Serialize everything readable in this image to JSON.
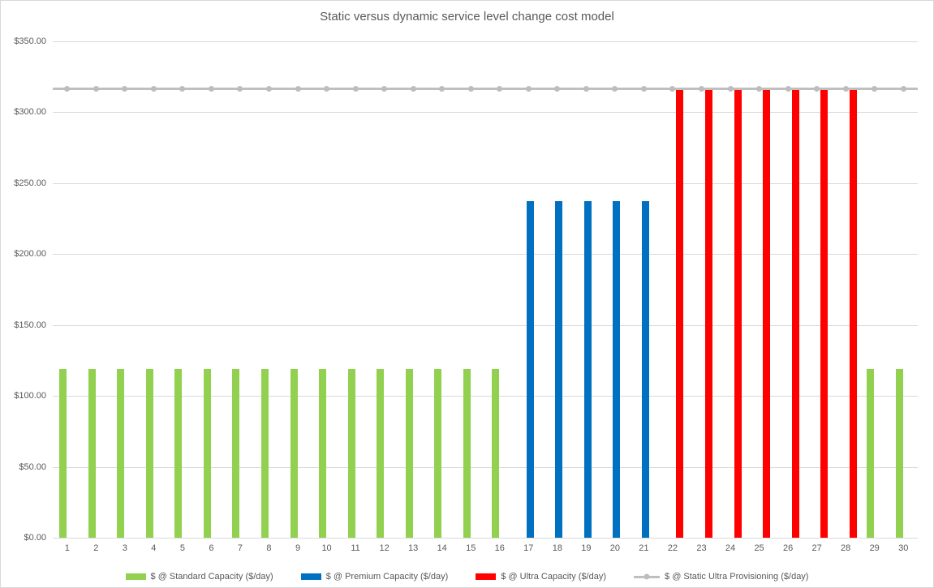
{
  "chart_data": {
    "type": "bar",
    "title": "Static versus dynamic service level change cost model",
    "xlabel": "",
    "ylabel": "",
    "ylim": [
      0,
      350
    ],
    "grid": "horizontal",
    "legend_position": "bottom",
    "y_ticks": [
      {
        "value": 0,
        "label": "$0.00"
      },
      {
        "value": 50,
        "label": "$50.00"
      },
      {
        "value": 100,
        "label": "$100.00"
      },
      {
        "value": 150,
        "label": "$150.00"
      },
      {
        "value": 200,
        "label": "$200.00"
      },
      {
        "value": 250,
        "label": "$250.00"
      },
      {
        "value": 300,
        "label": "$300.00"
      },
      {
        "value": 350,
        "label": "$350.00"
      }
    ],
    "categories": [
      "1",
      "2",
      "3",
      "4",
      "5",
      "6",
      "7",
      "8",
      "9",
      "10",
      "11",
      "12",
      "13",
      "14",
      "15",
      "16",
      "17",
      "18",
      "19",
      "20",
      "21",
      "22",
      "23",
      "24",
      "25",
      "26",
      "27",
      "28",
      "29",
      "30"
    ],
    "series": [
      {
        "name": "$ @ Standard Capacity ($/day)",
        "type": "bar",
        "color": "#92D050",
        "values": [
          118.8,
          118.8,
          118.8,
          118.8,
          118.8,
          118.8,
          118.8,
          118.8,
          118.8,
          118.8,
          118.8,
          118.8,
          118.8,
          118.8,
          118.8,
          118.8,
          null,
          null,
          null,
          null,
          null,
          null,
          null,
          null,
          null,
          null,
          null,
          null,
          118.8,
          118.8
        ]
      },
      {
        "name": "$ @ Premium Capacity ($/day)",
        "type": "bar",
        "color": "#0070C0",
        "values": [
          null,
          null,
          null,
          null,
          null,
          null,
          null,
          null,
          null,
          null,
          null,
          null,
          null,
          null,
          null,
          null,
          237.6,
          237.6,
          237.6,
          237.6,
          237.6,
          null,
          null,
          null,
          null,
          null,
          null,
          null,
          null,
          null
        ]
      },
      {
        "name": "$ @ Ultra Capacity ($/day)",
        "type": "bar",
        "color": "#FF0000",
        "values": [
          null,
          null,
          null,
          null,
          null,
          null,
          null,
          null,
          null,
          null,
          null,
          null,
          null,
          null,
          null,
          null,
          null,
          null,
          null,
          null,
          null,
          316.8,
          316.8,
          316.8,
          316.8,
          316.8,
          316.8,
          316.8,
          null,
          null
        ]
      },
      {
        "name": "$ @ Static Ultra Provisioning ($/day)",
        "type": "line",
        "color": "#BFBFBF",
        "marker_color": "#BDBDBD",
        "values": [
          316.8,
          316.8,
          316.8,
          316.8,
          316.8,
          316.8,
          316.8,
          316.8,
          316.8,
          316.8,
          316.8,
          316.8,
          316.8,
          316.8,
          316.8,
          316.8,
          316.8,
          316.8,
          316.8,
          316.8,
          316.8,
          316.8,
          316.8,
          316.8,
          316.8,
          316.8,
          316.8,
          316.8,
          316.8,
          316.8
        ]
      }
    ],
    "colors": {
      "grid": "#D9D9D9",
      "axis_text": "#595959",
      "title_text": "#595959",
      "border": "#D9D9D9"
    }
  }
}
